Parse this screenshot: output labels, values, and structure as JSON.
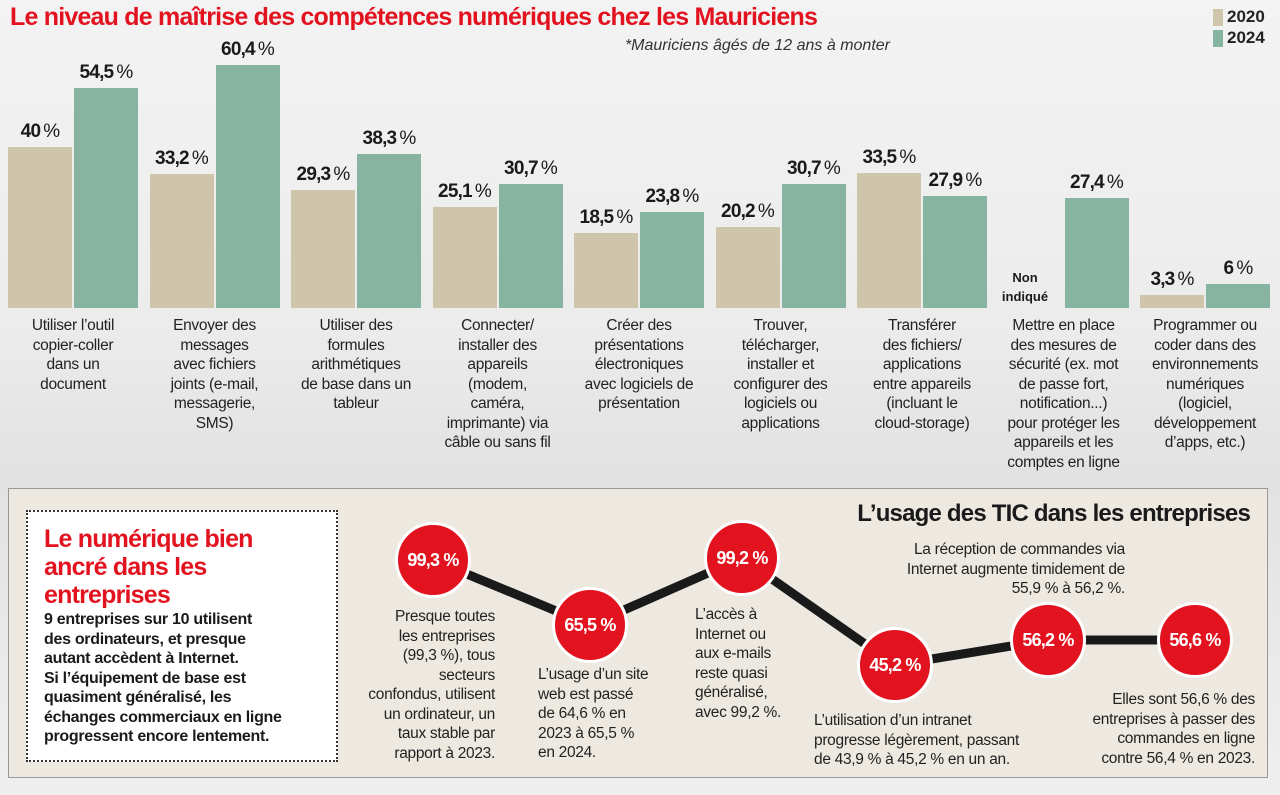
{
  "chart_data": {
    "type": "bar",
    "title": "Le niveau de maîtrise des compétences numériques chez les Mauriciens",
    "subtitle": "*Mauriciens âgés de 12 ans à monter",
    "legend_position": "top-right",
    "categories": [
      "Utiliser l’outil\ncopier-coller\ndans un\ndocument",
      "Envoyer des\nmessages\navec fichiers\njoints (e-mail,\nmessagerie,\nSMS)",
      "Utiliser des\nformules\narithmétiques\nde base dans un\ntableur",
      "Connecter/\ninstaller des\nappareils\n(modem,\ncaméra,\nimprimante) via\ncâble ou sans fil",
      "Créer des\nprésentations\nélectroniques\navec logiciels de\nprésentation",
      "Trouver,\ntélécharger,\ninstaller et\nconfigurer des\nlogiciels ou\napplications",
      "Transférer\ndes fichiers/\napplications\nentre appareils\n(incluant le\ncloud-storage)",
      "Mettre en place\ndes mesures de\nsécurité (ex. mot\nde passe fort,\nnotification...)\npour protéger les\nappareils et les\ncomptes en ligne",
      "Programmer ou\ncoder dans des\nenvironnements\nnumériques\n(logiciel,\ndéveloppement\nd’apps, etc.)"
    ],
    "series": [
      {
        "name": "2020",
        "color": "#cfc5ab",
        "values": [
          40,
          33.2,
          29.3,
          25.1,
          18.5,
          20.2,
          33.5,
          null,
          3.3
        ],
        "labels": [
          "40",
          "33,2",
          "29,3",
          "25,1",
          "18,5",
          "20,2",
          "33,5",
          null,
          "3,3"
        ]
      },
      {
        "name": "2024",
        "color": "#87b4a0",
        "values": [
          54.5,
          60.4,
          38.3,
          30.7,
          23.8,
          30.7,
          27.9,
          27.4,
          6
        ],
        "labels": [
          "54,5",
          "60,4",
          "38,3",
          "30,7",
          "23,8",
          "30,7",
          "27,9",
          "27,4",
          "6"
        ]
      }
    ],
    "unit": "%",
    "missing_label": "Non\nindiqué",
    "ylim": [
      0,
      62
    ],
    "grid": false
  },
  "panel": {
    "box_title": "Le numérique bien\nancré dans les\nentreprises",
    "box_text": "9 entreprises sur 10 utilisent\ndes ordinateurs, et presque\nautant accèdent à Internet.\nSi l’équipement de base est\nquasiment généralisé, les\néchanges commerciaux en ligne\nprogressent encore lentement.",
    "title": "L’usage des TIC dans les entreprises",
    "accent": "#e3121f",
    "points": [
      {
        "value": "99,3 %",
        "text": "Presque toutes\nles entreprises\n(99,3 %), tous\nsecteurs\nconfondus, utilisent\nun ordinateur, un\ntaux stable par\nrapport à 2023."
      },
      {
        "value": "65,5 %",
        "text": "L’usage d’un site\nweb est passé\nde 64,6 % en\n2023 à 65,5 %\nen 2024."
      },
      {
        "value": "99,2 %",
        "text": "L’accès à\nInternet ou\naux e-mails\nreste quasi\ngénéralisé,\navec 99,2 %."
      },
      {
        "value": "45,2 %",
        "text": "L’utilisation d’un intranet\nprogresse légèrement, passant\nde 43,9 % à 45,2 % en un an."
      },
      {
        "value": "56,2 %",
        "text": "La réception de commandes via\nInternet augmente timidement de\n55,9 % à 56,2 %."
      },
      {
        "value": "56,6 %",
        "text": "Elles sont 56,6 % des\nentreprises à passer des\ncommandes en ligne\ncontre 56,4 % en 2023."
      }
    ]
  }
}
